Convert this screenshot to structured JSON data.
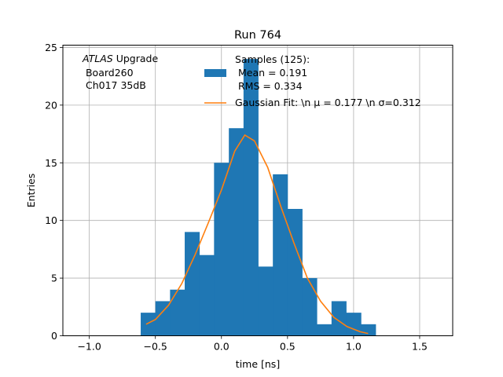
{
  "chart_data": {
    "type": "bar",
    "title": "Run 764",
    "xlabel": "time [ns]",
    "ylabel": "Entries",
    "xlim": [
      -1.2,
      1.75
    ],
    "ylim": [
      0,
      25.2
    ],
    "grid": true,
    "xticks": [
      -1.0,
      -0.5,
      0.0,
      0.5,
      1.0,
      1.5
    ],
    "xtick_labels": [
      "−1.0",
      "−0.5",
      "0.0",
      "0.5",
      "1.0",
      "1.5"
    ],
    "yticks": [
      0,
      5,
      10,
      15,
      20,
      25
    ],
    "ytick_labels": [
      "0",
      "5",
      "10",
      "15",
      "20",
      "25"
    ],
    "annotation": {
      "line1_italic": "ATLAS",
      "line1_rest": " Upgrade",
      "line2": " Board260",
      "line3": " Ch017 35dB"
    },
    "legend_position": "top-right",
    "histogram": {
      "name_lines": [
        "Samples (125):",
        " Mean = 0.191",
        " RMS = 0.334"
      ],
      "color": "#1f77b4",
      "bin_edges": [
        -0.611,
        -0.5,
        -0.389,
        -0.278,
        -0.167,
        -0.056,
        0.056,
        0.167,
        0.278,
        0.389,
        0.5,
        0.611,
        0.722,
        0.833,
        0.944,
        1.056,
        1.167
      ],
      "counts": [
        2,
        3,
        4,
        9,
        7,
        15,
        18,
        24,
        6,
        14,
        11,
        5,
        1,
        3,
        2,
        1
      ]
    },
    "fit": {
      "name": "Gaussian Fit: \\n μ = 0.177 \\n σ=0.312",
      "color": "#ff7f0e",
      "x": [
        -0.57,
        -0.5,
        -0.4,
        -0.3,
        -0.2,
        -0.1,
        0.0,
        0.1,
        0.177,
        0.25,
        0.35,
        0.45,
        0.55,
        0.65,
        0.75,
        0.85,
        0.95,
        1.05,
        1.11
      ],
      "y": [
        1.0,
        1.4,
        2.65,
        4.53,
        7.0,
        9.77,
        12.65,
        16.0,
        17.4,
        16.9,
        14.6,
        11.2,
        8.0,
        5.0,
        3.0,
        1.6,
        0.8,
        0.35,
        0.2
      ]
    }
  }
}
